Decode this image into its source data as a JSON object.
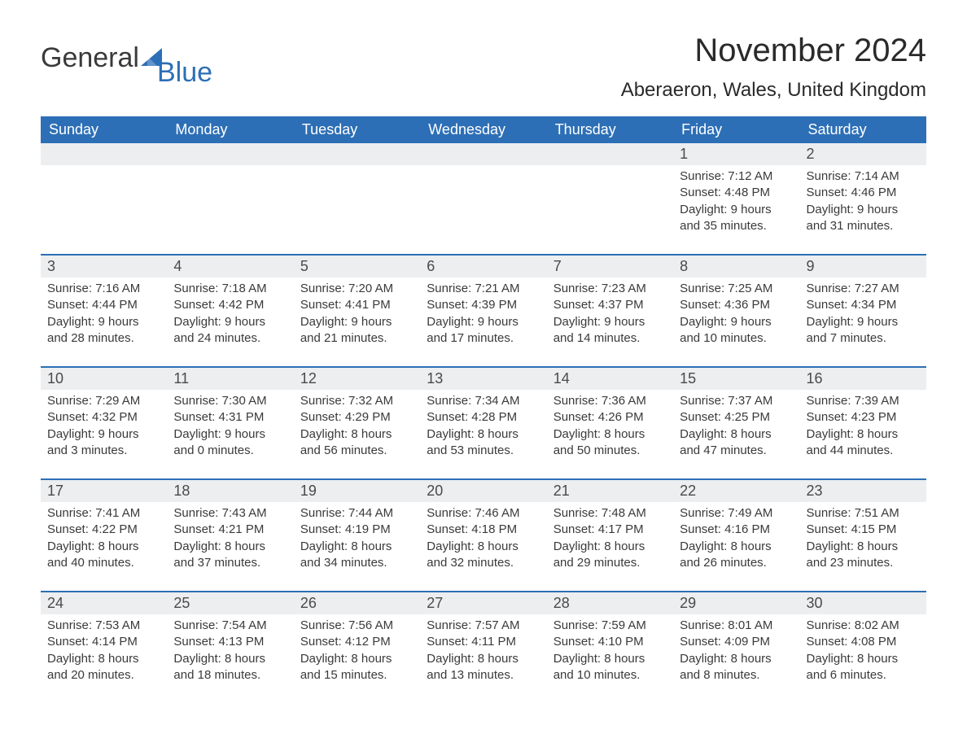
{
  "brand": {
    "general": "General",
    "blue": "Blue",
    "sail_color": "#2d6fb6"
  },
  "title": "November 2024",
  "location": "Aberaeron, Wales, United Kingdom",
  "colors": {
    "header_bg": "#2d6fb6",
    "header_text": "#ffffff",
    "row_divider": "#2d6fb6",
    "daynum_bg": "#eceeef",
    "body_text": "#3a3a3a",
    "page_bg": "#ffffff"
  },
  "typography": {
    "title_fontsize": 40,
    "location_fontsize": 24,
    "dow_fontsize": 18,
    "daynum_fontsize": 18,
    "body_fontsize": 15,
    "font_family": "Arial"
  },
  "dow": [
    "Sunday",
    "Monday",
    "Tuesday",
    "Wednesday",
    "Thursday",
    "Friday",
    "Saturday"
  ],
  "labels": {
    "sunrise": "Sunrise: ",
    "sunset": "Sunset: ",
    "daylight": "Daylight: "
  },
  "weeks": [
    [
      null,
      null,
      null,
      null,
      null,
      {
        "n": "1",
        "sunrise": "7:12 AM",
        "sunset": "4:48 PM",
        "daylight": "9 hours and 35 minutes."
      },
      {
        "n": "2",
        "sunrise": "7:14 AM",
        "sunset": "4:46 PM",
        "daylight": "9 hours and 31 minutes."
      }
    ],
    [
      {
        "n": "3",
        "sunrise": "7:16 AM",
        "sunset": "4:44 PM",
        "daylight": "9 hours and 28 minutes."
      },
      {
        "n": "4",
        "sunrise": "7:18 AM",
        "sunset": "4:42 PM",
        "daylight": "9 hours and 24 minutes."
      },
      {
        "n": "5",
        "sunrise": "7:20 AM",
        "sunset": "4:41 PM",
        "daylight": "9 hours and 21 minutes."
      },
      {
        "n": "6",
        "sunrise": "7:21 AM",
        "sunset": "4:39 PM",
        "daylight": "9 hours and 17 minutes."
      },
      {
        "n": "7",
        "sunrise": "7:23 AM",
        "sunset": "4:37 PM",
        "daylight": "9 hours and 14 minutes."
      },
      {
        "n": "8",
        "sunrise": "7:25 AM",
        "sunset": "4:36 PM",
        "daylight": "9 hours and 10 minutes."
      },
      {
        "n": "9",
        "sunrise": "7:27 AM",
        "sunset": "4:34 PM",
        "daylight": "9 hours and 7 minutes."
      }
    ],
    [
      {
        "n": "10",
        "sunrise": "7:29 AM",
        "sunset": "4:32 PM",
        "daylight": "9 hours and 3 minutes."
      },
      {
        "n": "11",
        "sunrise": "7:30 AM",
        "sunset": "4:31 PM",
        "daylight": "9 hours and 0 minutes."
      },
      {
        "n": "12",
        "sunrise": "7:32 AM",
        "sunset": "4:29 PM",
        "daylight": "8 hours and 56 minutes."
      },
      {
        "n": "13",
        "sunrise": "7:34 AM",
        "sunset": "4:28 PM",
        "daylight": "8 hours and 53 minutes."
      },
      {
        "n": "14",
        "sunrise": "7:36 AM",
        "sunset": "4:26 PM",
        "daylight": "8 hours and 50 minutes."
      },
      {
        "n": "15",
        "sunrise": "7:37 AM",
        "sunset": "4:25 PM",
        "daylight": "8 hours and 47 minutes."
      },
      {
        "n": "16",
        "sunrise": "7:39 AM",
        "sunset": "4:23 PM",
        "daylight": "8 hours and 44 minutes."
      }
    ],
    [
      {
        "n": "17",
        "sunrise": "7:41 AM",
        "sunset": "4:22 PM",
        "daylight": "8 hours and 40 minutes."
      },
      {
        "n": "18",
        "sunrise": "7:43 AM",
        "sunset": "4:21 PM",
        "daylight": "8 hours and 37 minutes."
      },
      {
        "n": "19",
        "sunrise": "7:44 AM",
        "sunset": "4:19 PM",
        "daylight": "8 hours and 34 minutes."
      },
      {
        "n": "20",
        "sunrise": "7:46 AM",
        "sunset": "4:18 PM",
        "daylight": "8 hours and 32 minutes."
      },
      {
        "n": "21",
        "sunrise": "7:48 AM",
        "sunset": "4:17 PM",
        "daylight": "8 hours and 29 minutes."
      },
      {
        "n": "22",
        "sunrise": "7:49 AM",
        "sunset": "4:16 PM",
        "daylight": "8 hours and 26 minutes."
      },
      {
        "n": "23",
        "sunrise": "7:51 AM",
        "sunset": "4:15 PM",
        "daylight": "8 hours and 23 minutes."
      }
    ],
    [
      {
        "n": "24",
        "sunrise": "7:53 AM",
        "sunset": "4:14 PM",
        "daylight": "8 hours and 20 minutes."
      },
      {
        "n": "25",
        "sunrise": "7:54 AM",
        "sunset": "4:13 PM",
        "daylight": "8 hours and 18 minutes."
      },
      {
        "n": "26",
        "sunrise": "7:56 AM",
        "sunset": "4:12 PM",
        "daylight": "8 hours and 15 minutes."
      },
      {
        "n": "27",
        "sunrise": "7:57 AM",
        "sunset": "4:11 PM",
        "daylight": "8 hours and 13 minutes."
      },
      {
        "n": "28",
        "sunrise": "7:59 AM",
        "sunset": "4:10 PM",
        "daylight": "8 hours and 10 minutes."
      },
      {
        "n": "29",
        "sunrise": "8:01 AM",
        "sunset": "4:09 PM",
        "daylight": "8 hours and 8 minutes."
      },
      {
        "n": "30",
        "sunrise": "8:02 AM",
        "sunset": "4:08 PM",
        "daylight": "8 hours and 6 minutes."
      }
    ]
  ]
}
